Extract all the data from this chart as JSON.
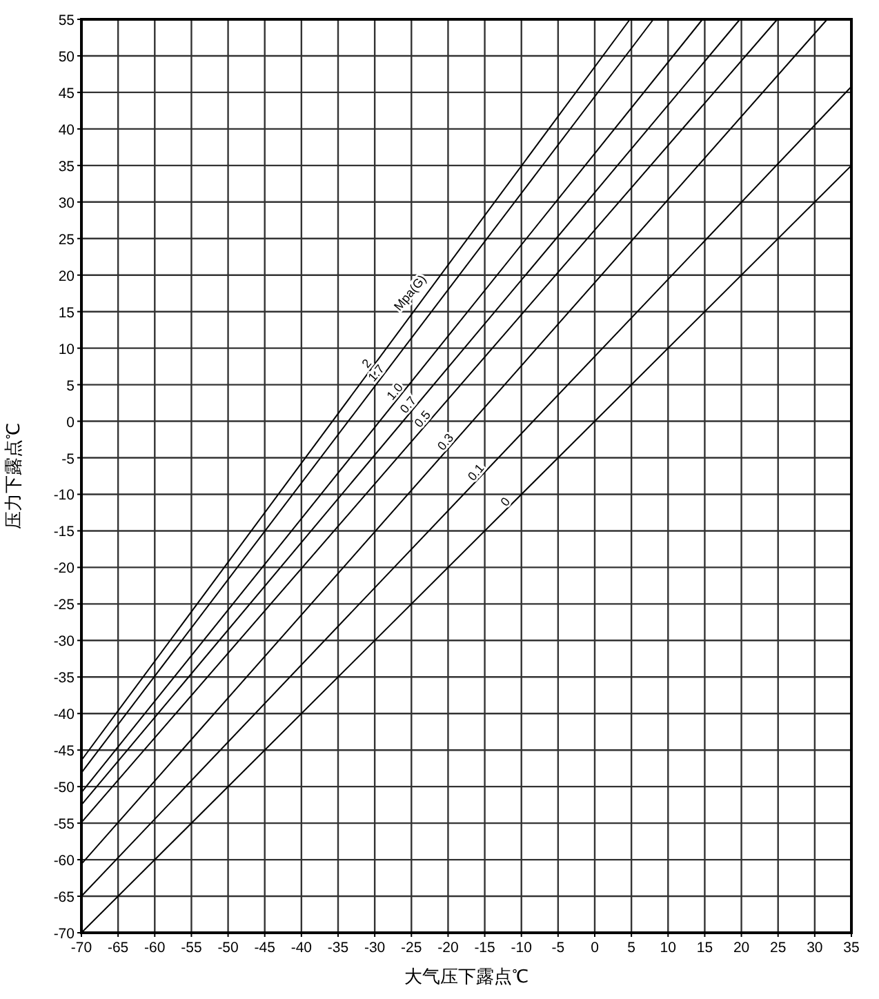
{
  "chart_data": {
    "type": "line",
    "xlabel": "大气压下露点℃",
    "ylabel": "压力下露点℃",
    "xlim": [
      -70,
      35
    ],
    "ylim": [
      -70,
      55
    ],
    "xticks": [
      -70,
      -65,
      -60,
      -55,
      -50,
      -45,
      -40,
      -35,
      -30,
      -25,
      -20,
      -15,
      -10,
      -5,
      0,
      5,
      10,
      15,
      20,
      25,
      30,
      35
    ],
    "yticks": [
      -70,
      -65,
      -60,
      -55,
      -50,
      -45,
      -40,
      -35,
      -30,
      -25,
      -20,
      -15,
      -10,
      -5,
      0,
      5,
      10,
      15,
      20,
      25,
      30,
      35,
      40,
      45,
      50,
      55
    ],
    "grid": true,
    "series": [
      {
        "name": "2",
        "color": "#000000",
        "x": [
          -70,
          4.8
        ],
        "values": [
          -46.4,
          55
        ]
      },
      {
        "name": "1.7",
        "color": "#000000",
        "x": [
          -70,
          8
        ],
        "values": [
          -48.1,
          55
        ]
      },
      {
        "name": "1.0",
        "color": "#000000",
        "x": [
          -70,
          14.7
        ],
        "values": [
          -50.8,
          55
        ]
      },
      {
        "name": "0.7",
        "color": "#000000",
        "x": [
          -70,
          19.8
        ],
        "values": [
          -52.5,
          55
        ]
      },
      {
        "name": "0.5",
        "color": "#000000",
        "x": [
          -70,
          24.9
        ],
        "values": [
          -54.9,
          55
        ]
      },
      {
        "name": "0.3",
        "color": "#000000",
        "x": [
          -70,
          31.7
        ],
        "values": [
          -60.6,
          55
        ]
      },
      {
        "name": "0.1",
        "color": "#000000",
        "x": [
          -70,
          35
        ],
        "values": [
          -65,
          45.8
        ]
      },
      {
        "name": "0",
        "color": "#000000",
        "x": [
          -70,
          35
        ],
        "values": [
          -70,
          35
        ]
      }
    ],
    "annotations": [
      "Mpa(G)"
    ]
  }
}
